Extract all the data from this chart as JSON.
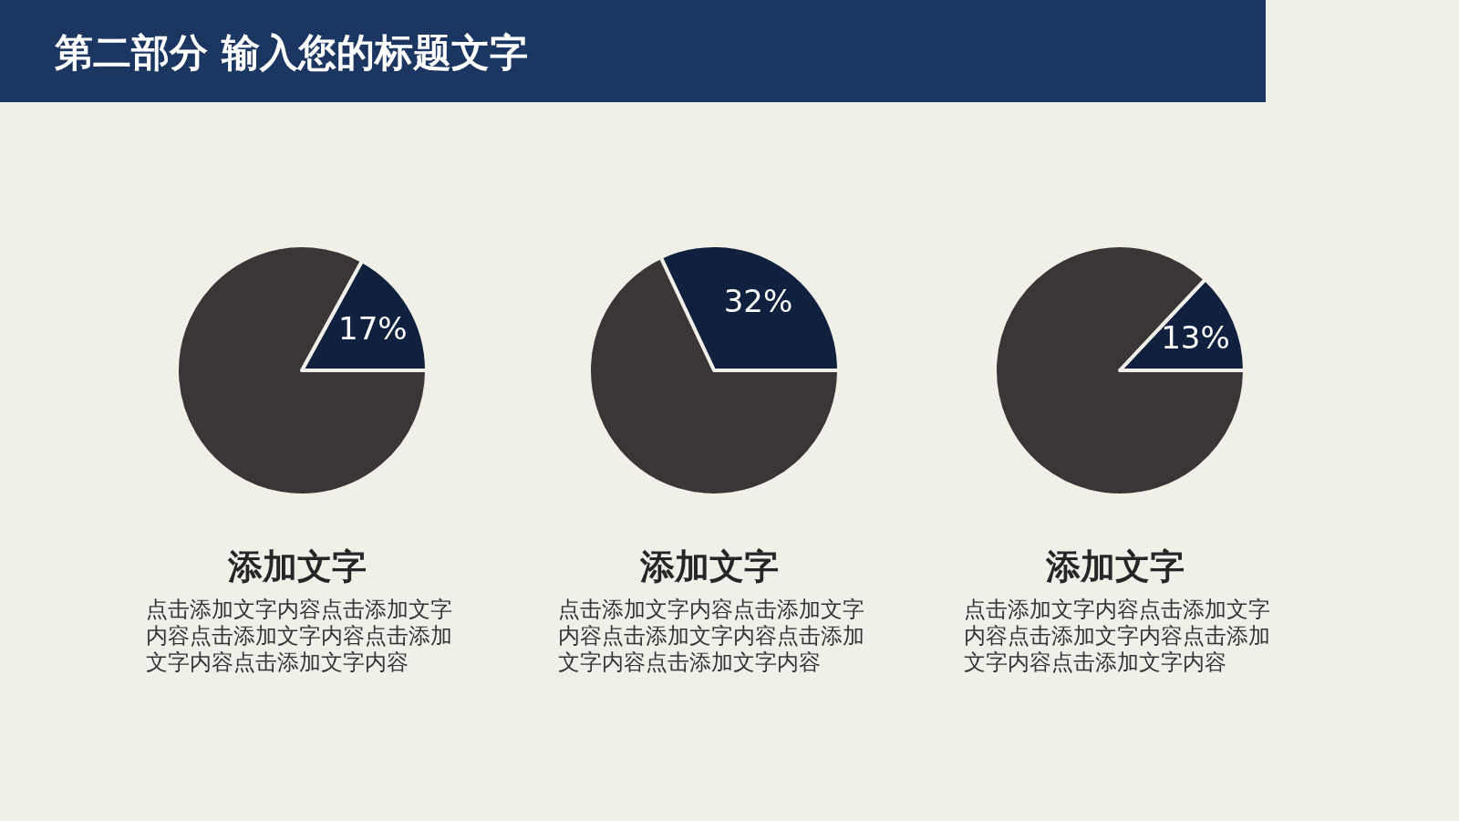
{
  "chart_data": [
    {
      "type": "other",
      "title": "第二部分  输入您的标题文字"
    },
    {
      "type": "pie",
      "title": "添加文字",
      "categories": [
        null,
        null
      ],
      "values": [
        17,
        83
      ],
      "colors": [
        "#10213f",
        "#3a3636"
      ],
      "value_labels": [
        "17%",
        null
      ],
      "annotations": [
        "点击添加文字内容点击添加文字内容点击添加文字内容点击添加文字内容点击添加文字内容"
      ]
    },
    {
      "type": "pie",
      "title": "添加文字",
      "categories": [
        null,
        null
      ],
      "values": [
        32,
        68
      ],
      "colors": [
        "#10213f",
        "#3a3636"
      ],
      "value_labels": [
        "32%",
        null
      ],
      "annotations": [
        "点击添加文字内容点击添加文字内容点击添加文字内容点击添加文字内容点击添加文字内容"
      ]
    },
    {
      "type": "pie",
      "title": "添加文字",
      "categories": [
        null,
        null
      ],
      "values": [
        13,
        87
      ],
      "colors": [
        "#10213f",
        "#3a3636"
      ],
      "value_labels": [
        "13%",
        null
      ],
      "annotations": [
        "点击添加文字内容点击添加文字内容点击添加文字内容点击添加文字内容点击添加文字内容"
      ]
    }
  ]
}
